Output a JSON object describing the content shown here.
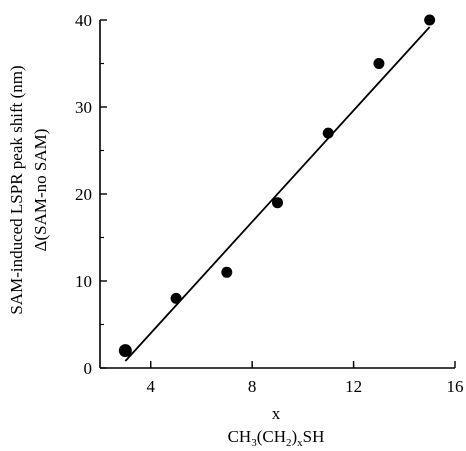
{
  "chart_data": {
    "type": "scatter",
    "title": "",
    "xlabel": "x",
    "xlabel_line2": {
      "prefix": "CH",
      "sub1": "3",
      "mid": "(CH",
      "sub2": "2",
      "after": ")",
      "sub3": "x",
      "suffix": "SH"
    },
    "ylabel_line1": "SAM-induced LSPR peak shift (nm)",
    "ylabel_line2": "Δ(SAM-no SAM)",
    "xlim": [
      2,
      16
    ],
    "ylim": [
      0,
      40
    ],
    "xticks": [
      4,
      8,
      12,
      16
    ],
    "yticks": [
      0,
      10,
      20,
      30,
      40
    ],
    "grid": false,
    "series": [
      {
        "points": [
          {
            "x": 3,
            "y": 2
          },
          {
            "x": 5,
            "y": 8
          },
          {
            "x": 7,
            "y": 11
          },
          {
            "x": 9,
            "y": 19
          },
          {
            "x": 11,
            "y": 27
          },
          {
            "x": 13,
            "y": 35
          },
          {
            "x": 15,
            "y": 40
          }
        ]
      }
    ],
    "fit_line": {
      "type": "linear",
      "x": [
        3,
        15
      ],
      "y": [
        0.8,
        39.2
      ]
    },
    "marker_color": "#000000",
    "line_color": "#000000"
  }
}
